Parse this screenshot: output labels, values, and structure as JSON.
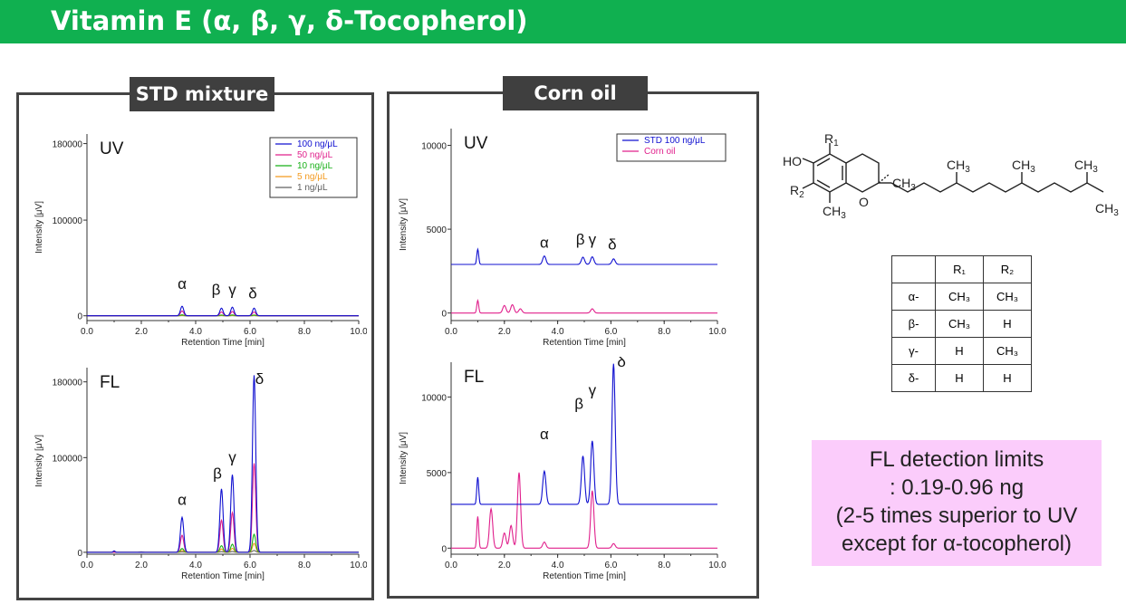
{
  "title": "Vitamin E (α, β, γ, δ-Tocopherol)",
  "colors": {
    "banner": "#10b050",
    "blue": "#1010d0",
    "magenta": "#e0208c",
    "green": "#18b018",
    "orange": "#f39a1e",
    "gray": "#606060",
    "note_bg": "#fbccfb"
  },
  "panels": {
    "std": {
      "label": "STD mixture"
    },
    "corn": {
      "label": "Corn oil"
    }
  },
  "chart_data": [
    {
      "id": "std-uv",
      "type": "line",
      "title": "UV",
      "xlabel": "Retention Time [min]",
      "ylabel": "Intensity [μV]",
      "xlim": [
        0,
        10
      ],
      "ylim": [
        -5000,
        190000
      ],
      "xticks": [
        "0.0",
        "2.0",
        "4.0",
        "6.0",
        "8.0",
        "10.0"
      ],
      "xtick_values": [
        0,
        2,
        4,
        6,
        8,
        10
      ],
      "yticks": [
        "0",
        "100000",
        "180000"
      ],
      "ytick_values": [
        0,
        100000,
        180000
      ],
      "series": [
        {
          "name": "100 ng/μL",
          "color": "#1010d0",
          "baseline": 0,
          "peaks": [
            [
              3.5,
              10000
            ],
            [
              4.95,
              8000
            ],
            [
              5.35,
              9000
            ],
            [
              6.15,
              8000
            ]
          ]
        },
        {
          "name": "50 ng/μL",
          "color": "#e0208c",
          "baseline": 0,
          "peaks": [
            [
              3.5,
              5000
            ],
            [
              4.95,
              4000
            ],
            [
              5.35,
              4500
            ],
            [
              6.15,
              4000
            ]
          ]
        },
        {
          "name": "10 ng/μL",
          "color": "#18b018",
          "baseline": 0,
          "peaks": [
            [
              3.5,
              1000
            ],
            [
              4.95,
              800
            ],
            [
              5.35,
              900
            ],
            [
              6.15,
              800
            ]
          ]
        },
        {
          "name": "5 ng/μL",
          "color": "#f39a1e",
          "baseline": 0,
          "peaks": [
            [
              3.5,
              500
            ],
            [
              4.95,
              400
            ],
            [
              5.35,
              450
            ],
            [
              6.15,
              400
            ]
          ]
        },
        {
          "name": "1 ng/μL",
          "color": "#606060",
          "baseline": 0,
          "peaks": [
            [
              3.5,
              100
            ],
            [
              4.95,
              80
            ],
            [
              5.35,
              90
            ],
            [
              6.15,
              80
            ]
          ]
        }
      ],
      "annotations": [
        {
          "text": "α",
          "x": 3.5,
          "y": 28000
        },
        {
          "text": "β",
          "x": 4.75,
          "y": 22000
        },
        {
          "text": "γ",
          "x": 5.35,
          "y": 22000
        },
        {
          "text": "δ",
          "x": 6.1,
          "y": 18000
        }
      ],
      "legend": "top-right"
    },
    {
      "id": "std-fl",
      "type": "line",
      "title": "FL",
      "xlabel": "Retention Time [min]",
      "ylabel": "Intensity [μV]",
      "xlim": [
        0,
        10
      ],
      "ylim": [
        -2000,
        195000
      ],
      "xticks": [
        "0.0",
        "2.0",
        "4.0",
        "6.0",
        "8.0",
        "10.0"
      ],
      "xtick_values": [
        0,
        2,
        4,
        6,
        8,
        10
      ],
      "yticks": [
        "0",
        "100000",
        "180000"
      ],
      "ytick_values": [
        0,
        100000,
        180000
      ],
      "series": [
        {
          "name": "100 ng/μL",
          "color": "#1010d0",
          "baseline": 0,
          "peaks": [
            [
              1.0,
              1500
            ],
            [
              3.5,
              37000
            ],
            [
              4.95,
              67000
            ],
            [
              5.35,
              82000
            ],
            [
              6.15,
              187000
            ]
          ]
        },
        {
          "name": "50 ng/μL",
          "color": "#e0208c",
          "baseline": 0,
          "peaks": [
            [
              3.5,
              18000
            ],
            [
              4.95,
              34000
            ],
            [
              5.35,
              42000
            ],
            [
              6.15,
              94000
            ]
          ]
        },
        {
          "name": "10 ng/μL",
          "color": "#18b018",
          "baseline": 0,
          "peaks": [
            [
              3.5,
              4000
            ],
            [
              4.95,
              7000
            ],
            [
              5.35,
              8500
            ],
            [
              6.15,
              19000
            ]
          ]
        },
        {
          "name": "5 ng/μL",
          "color": "#f39a1e",
          "baseline": 0,
          "peaks": [
            [
              3.5,
              2000
            ],
            [
              4.95,
              3500
            ],
            [
              5.35,
              4200
            ],
            [
              6.15,
              9500
            ]
          ]
        },
        {
          "name": "1 ng/μL",
          "color": "#606060",
          "baseline": 0,
          "peaks": [
            [
              1.0,
              800
            ],
            [
              2.0,
              500
            ],
            [
              3.5,
              400
            ],
            [
              4.95,
              700
            ],
            [
              5.35,
              850
            ],
            [
              6.15,
              1900
            ]
          ]
        }
      ],
      "annotations": [
        {
          "text": "α",
          "x": 3.5,
          "y": 50000
        },
        {
          "text": "β",
          "x": 4.8,
          "y": 78000
        },
        {
          "text": "γ",
          "x": 5.35,
          "y": 95000
        },
        {
          "text": "δ",
          "x": 6.35,
          "y": 178000
        }
      ]
    },
    {
      "id": "corn-uv",
      "type": "line",
      "title": "UV",
      "xlabel": "Retention Time [min]",
      "ylabel": "Intensity [μV]",
      "xlim": [
        0,
        10
      ],
      "ylim": [
        -450,
        11000
      ],
      "xticks": [
        "0.0",
        "2.0",
        "4.0",
        "6.0",
        "8.0",
        "10.0"
      ],
      "xtick_values": [
        0,
        2,
        4,
        6,
        8,
        10
      ],
      "yticks": [
        "0",
        "5000",
        "10000"
      ],
      "ytick_values": [
        0,
        5000,
        10000
      ],
      "series": [
        {
          "name": "STD 100 ng/μL",
          "color": "#1010d0",
          "baseline": 2900,
          "peaks": [
            [
              1.0,
              900
            ],
            [
              3.5,
              500
            ],
            [
              4.95,
              430
            ],
            [
              5.3,
              450
            ],
            [
              6.1,
              330
            ]
          ]
        },
        {
          "name": "Corn oil",
          "color": "#e0208c",
          "baseline": 0,
          "peaks": [
            [
              1.0,
              750
            ],
            [
              2.0,
              450
            ],
            [
              2.3,
              500
            ],
            [
              2.6,
              250
            ],
            [
              5.3,
              250
            ]
          ]
        }
      ],
      "annotations": [
        {
          "text": "α",
          "x": 3.5,
          "y": 3900
        },
        {
          "text": "β",
          "x": 4.85,
          "y": 4100
        },
        {
          "text": "γ",
          "x": 5.3,
          "y": 4100
        },
        {
          "text": "δ",
          "x": 6.05,
          "y": 3800
        }
      ],
      "legend": "top-right"
    },
    {
      "id": "corn-fl",
      "type": "line",
      "title": "FL",
      "xlabel": "Retention Time [min]",
      "ylabel": "Intensity [μV]",
      "xlim": [
        0,
        10
      ],
      "ylim": [
        -400,
        12300
      ],
      "xticks": [
        "0.0",
        "2.0",
        "4.0",
        "6.0",
        "8.0",
        "10.0"
      ],
      "xtick_values": [
        0,
        2,
        4,
        6,
        8,
        10
      ],
      "yticks": [
        "0",
        "5000",
        "10000"
      ],
      "ytick_values": [
        0,
        5000,
        10000
      ],
      "series": [
        {
          "name": "STD 100 ng/μL",
          "color": "#1010d0",
          "baseline": 2900,
          "peaks": [
            [
              1.0,
              1800
            ],
            [
              3.5,
              2200
            ],
            [
              4.95,
              3200
            ],
            [
              5.3,
              4200
            ],
            [
              6.1,
              9300
            ]
          ]
        },
        {
          "name": "Corn oil",
          "color": "#e0208c",
          "baseline": 0,
          "peaks": [
            [
              1.0,
              2100
            ],
            [
              1.5,
              2600
            ],
            [
              2.0,
              1000
            ],
            [
              2.25,
              1500
            ],
            [
              2.55,
              5000
            ],
            [
              3.5,
              400
            ],
            [
              5.3,
              3800
            ],
            [
              6.1,
              300
            ]
          ]
        }
      ],
      "annotations": [
        {
          "text": "α",
          "x": 3.5,
          "y": 7200
        },
        {
          "text": "β",
          "x": 4.8,
          "y": 9200
        },
        {
          "text": "γ",
          "x": 5.3,
          "y": 10100
        },
        {
          "text": "δ",
          "x": 6.4,
          "y": 12000
        }
      ]
    }
  ],
  "structure": {
    "substituents": {
      "r1": "R",
      "r1_sub": "1",
      "r2": "R",
      "r2_sub": "2",
      "ho": "HO"
    },
    "methyl": {
      "text": "CH",
      "sub": "3"
    }
  },
  "table": {
    "headers": [
      "",
      "R₁",
      "R₂"
    ],
    "rows": [
      [
        "α-",
        "CH₃",
        "CH₃"
      ],
      [
        "β-",
        "CH₃",
        "H"
      ],
      [
        "γ-",
        "H",
        "CH₃"
      ],
      [
        "δ-",
        "H",
        "H"
      ]
    ]
  },
  "note": {
    "lines": [
      "FL detection limits",
      ": 0.19-0.96 ng",
      "(2-5 times superior to UV",
      "except for α-tocopherol)"
    ]
  }
}
